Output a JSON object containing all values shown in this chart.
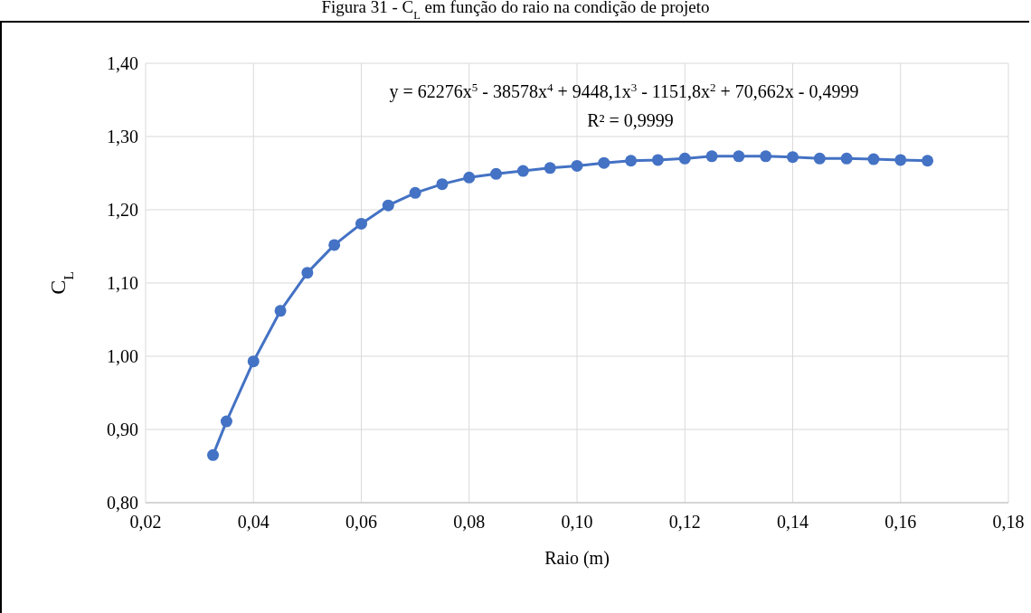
{
  "chart_data": {
    "type": "line",
    "title": "Figura 31 - C$_{L}$ em função do raio na condição de projeto",
    "xlabel": "Raio (m)",
    "ylabel": "C$_{L}$",
    "annotations": [
      "y = 62276x$^{5}$ - 38578x$^{4}$ + 9448,1x$^{3}$ - 1151,8x$^{2}$ + 70,662x - 0,4999",
      "R² = 0,9999"
    ],
    "x": [
      0.0325,
      0.035,
      0.04,
      0.045,
      0.05,
      0.055,
      0.06,
      0.065,
      0.07,
      0.075,
      0.08,
      0.085,
      0.09,
      0.095,
      0.1,
      0.105,
      0.11,
      0.115,
      0.12,
      0.125,
      0.13,
      0.135,
      0.14,
      0.145,
      0.15,
      0.155,
      0.16,
      0.165
    ],
    "series": [
      {
        "color": "#4472c4",
        "values": [
          0.865,
          0.911,
          0.993,
          1.062,
          1.114,
          1.152,
          1.181,
          1.206,
          1.223,
          1.235,
          1.244,
          1.249,
          1.253,
          1.257,
          1.26,
          1.264,
          1.267,
          1.268,
          1.27,
          1.273,
          1.273,
          1.273,
          1.272,
          1.27,
          1.27,
          1.269,
          1.268,
          1.267
        ]
      }
    ],
    "xlim": [
      0.02,
      0.18
    ],
    "ylim": [
      0.8,
      1.4
    ],
    "xticks": [
      {
        "value": 0.02,
        "label": "0,02"
      },
      {
        "value": 0.04,
        "label": "0,04"
      },
      {
        "value": 0.06,
        "label": "0,06"
      },
      {
        "value": 0.08,
        "label": "0,08"
      },
      {
        "value": 0.1,
        "label": "0,10"
      },
      {
        "value": 0.12,
        "label": "0,12"
      },
      {
        "value": 0.14,
        "label": "0,14"
      },
      {
        "value": 0.16,
        "label": "0,16"
      },
      {
        "value": 0.18,
        "label": "0,18"
      }
    ],
    "yticks": [
      {
        "value": 0.8,
        "label": "0,80"
      },
      {
        "value": 0.9,
        "label": "0,90"
      },
      {
        "value": 1.0,
        "label": "1,00"
      },
      {
        "value": 1.1,
        "label": "1,10"
      },
      {
        "value": 1.2,
        "label": "1,20"
      },
      {
        "value": 1.3,
        "label": "1,30"
      },
      {
        "value": 1.4,
        "label": "1,40"
      }
    ],
    "grid": true,
    "marker": "circle",
    "line_style": "solid"
  }
}
